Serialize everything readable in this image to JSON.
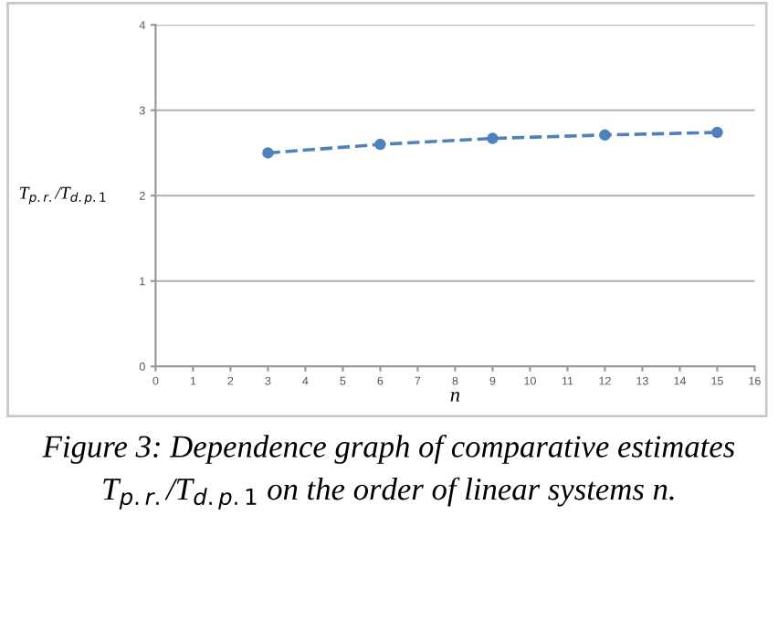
{
  "chart_data": {
    "type": "line",
    "xlabel": "n",
    "ylabel": "T$_{p.r.}$/T$_{d.p.1}$",
    "x": [
      3,
      6,
      9,
      12,
      15
    ],
    "series": [
      {
        "color": "#4f81bd",
        "values": [
          2.5,
          2.6,
          2.67,
          2.71,
          2.74
        ]
      }
    ],
    "xlim": [
      0,
      16
    ],
    "xticks": [
      0,
      1,
      2,
      3,
      4,
      5,
      6,
      7,
      8,
      9,
      10,
      11,
      12,
      13,
      14,
      15,
      16
    ],
    "ylim": [
      0,
      4
    ],
    "yticks": [
      0,
      1,
      2,
      3,
      4
    ],
    "grid": "y",
    "marker": "circle",
    "line_style": "dashed",
    "legend": false,
    "annotations": [
      "Figure 3: Dependence graph of comparative estimates T$_{p.r.}$/T$_{d.p.1}$ on the order of linear systems n."
    ]
  }
}
